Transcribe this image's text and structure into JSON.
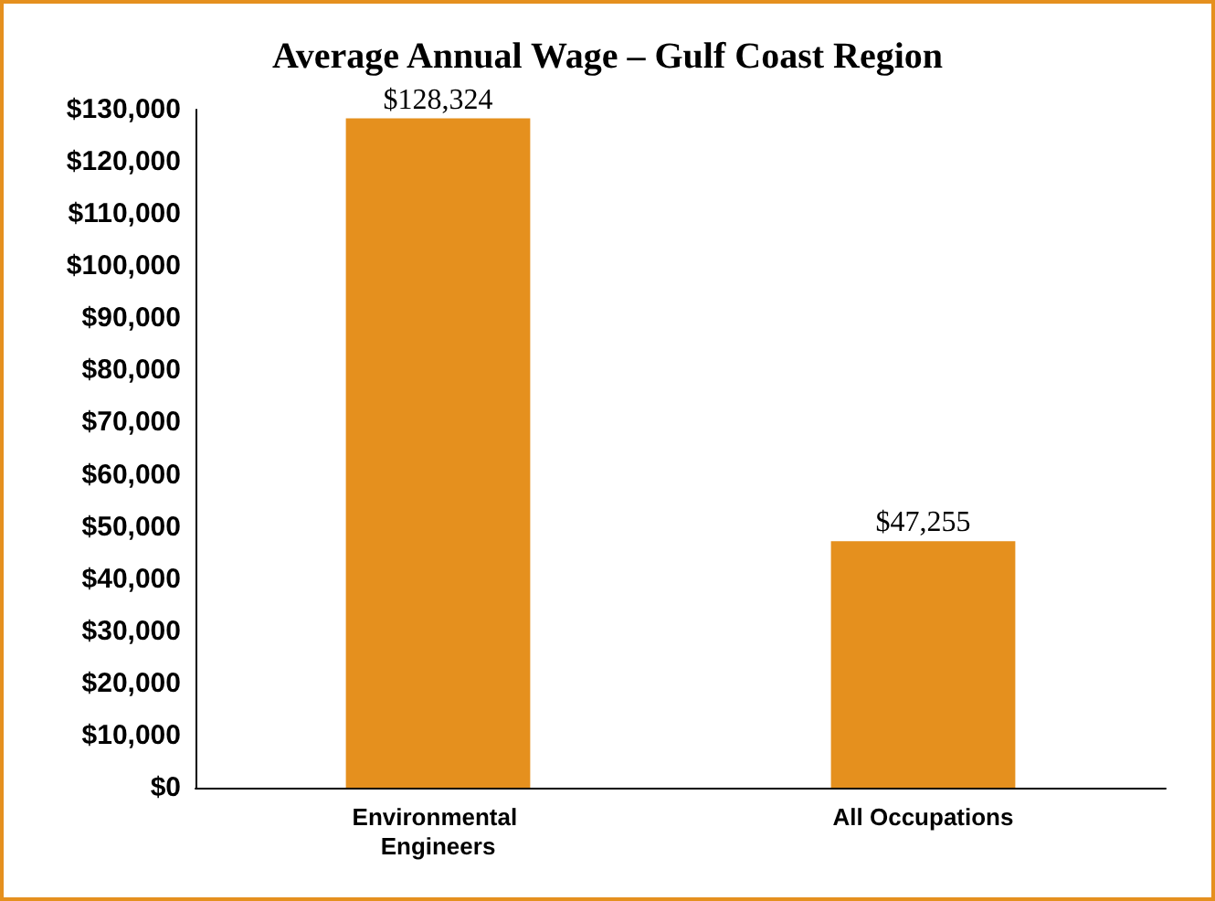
{
  "chart_data": {
    "type": "bar",
    "title": "Average Annual Wage – Gulf Coast Region",
    "categories": [
      "Environmental Engineers",
      "All Occupations"
    ],
    "values": [
      128324,
      47255
    ],
    "value_labels": [
      "$128,324",
      "$47,255"
    ],
    "color": "#e5901e",
    "ylim": [
      0,
      130000
    ],
    "yticks": [
      {
        "value": 0,
        "label": "$0"
      },
      {
        "value": 10000,
        "label": "$10,000"
      },
      {
        "value": 20000,
        "label": "$20,000"
      },
      {
        "value": 30000,
        "label": "$30,000"
      },
      {
        "value": 40000,
        "label": "$40,000"
      },
      {
        "value": 50000,
        "label": "$50,000"
      },
      {
        "value": 60000,
        "label": "$60,000"
      },
      {
        "value": 70000,
        "label": "$70,000"
      },
      {
        "value": 80000,
        "label": "$80,000"
      },
      {
        "value": 90000,
        "label": "$90,000"
      },
      {
        "value": 100000,
        "label": "$100,000"
      },
      {
        "value": 110000,
        "label": "$110,000"
      },
      {
        "value": 120000,
        "label": "$120,000"
      },
      {
        "value": 130000,
        "label": "$130,000"
      }
    ],
    "grid": false
  }
}
